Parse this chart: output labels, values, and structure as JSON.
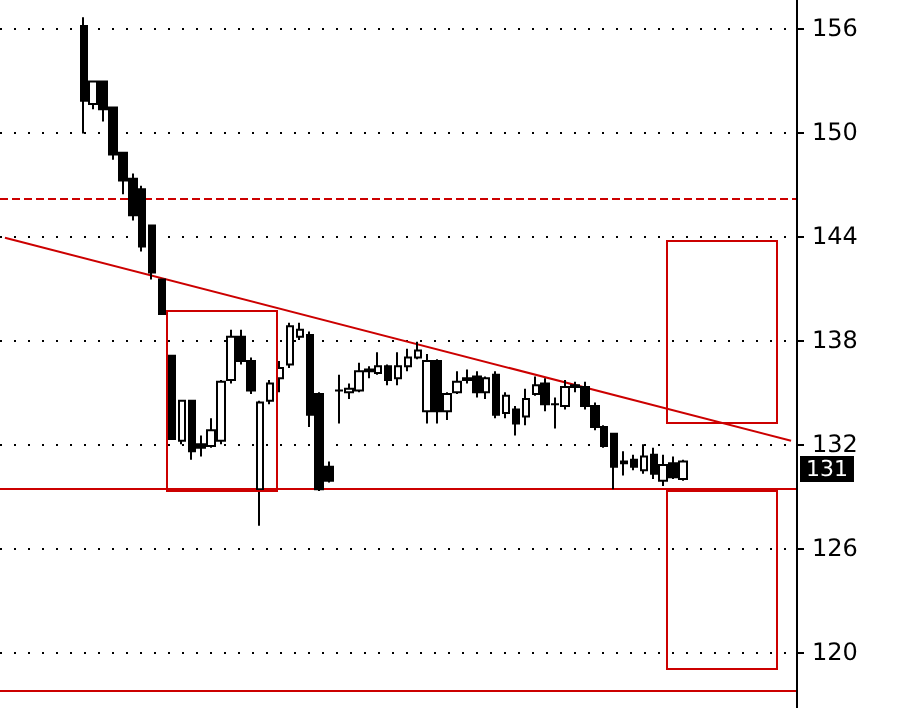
{
  "chart_data": {
    "type": "candlestick",
    "categories": [
      null,
      null,
      null,
      null,
      null,
      null,
      null,
      null,
      null,
      null,
      null,
      null,
      null,
      null,
      null,
      null,
      null,
      null,
      null,
      null,
      null,
      null,
      null,
      null,
      null,
      null,
      null,
      null,
      null,
      null,
      null,
      null,
      null,
      null,
      null,
      null,
      null,
      null,
      null,
      null,
      null,
      null,
      null,
      null,
      null,
      null,
      null,
      null,
      null,
      null,
      null,
      null,
      null,
      null,
      null,
      null,
      null,
      null,
      null,
      null,
      null,
      null,
      null,
      null,
      null,
      null,
      null,
      null,
      null,
      null,
      null,
      null,
      null,
      null,
      null,
      null,
      null,
      null,
      null,
      null,
      null
    ],
    "ohlc": [
      null,
      null,
      null,
      null,
      null,
      null,
      null,
      null,
      [
        156.1,
        156.6,
        149.9,
        151.8
      ],
      [
        151.6,
        152.9,
        151.3,
        152.9
      ],
      [
        152.9,
        152.9,
        150.6,
        151.3
      ],
      [
        151.4,
        151.4,
        148.4,
        148.7
      ],
      [
        148.8,
        148.8,
        146.4,
        147.2
      ],
      [
        147.3,
        147.6,
        144.9,
        145.2
      ],
      [
        146.7,
        146.9,
        143.1,
        143.4
      ],
      [
        144.6,
        144.6,
        141.5,
        141.9
      ],
      [
        141.5,
        141.5,
        139.5,
        139.5
      ],
      [
        137.1,
        137.1,
        132.3,
        132.3
      ],
      [
        132.2,
        134.5,
        132.0,
        134.5
      ],
      [
        134.5,
        134.5,
        131.1,
        131.6
      ],
      [
        132.0,
        132.5,
        131.3,
        131.8
      ],
      [
        131.9,
        133.5,
        131.8,
        132.8
      ],
      [
        132.2,
        135.7,
        132.0,
        135.6
      ],
      [
        135.7,
        138.6,
        135.5,
        138.2
      ],
      [
        138.2,
        138.6,
        136.6,
        136.8
      ],
      [
        136.8,
        137.0,
        134.9,
        135.1
      ],
      [
        129.4,
        134.5,
        127.3,
        134.4
      ],
      [
        134.5,
        135.7,
        134.3,
        135.5
      ],
      [
        135.8,
        136.8,
        135.0,
        136.4
      ],
      [
        136.6,
        139.0,
        136.4,
        138.8
      ],
      [
        138.2,
        139.0,
        138.0,
        138.6
      ],
      [
        138.3,
        138.5,
        133.0,
        133.7
      ],
      [
        134.9,
        135.0,
        129.3,
        129.4
      ],
      [
        130.7,
        131.0,
        129.8,
        129.9
      ],
      [
        135.1,
        136.0,
        133.2,
        135.1
      ],
      [
        135.0,
        135.5,
        134.6,
        135.2
      ],
      [
        135.1,
        136.7,
        135.0,
        136.2
      ],
      [
        136.2,
        136.5,
        135.8,
        136.3
      ],
      [
        136.1,
        137.3,
        136.0,
        136.5
      ],
      [
        136.5,
        136.6,
        135.4,
        135.7
      ],
      [
        135.8,
        137.3,
        135.4,
        136.5
      ],
      [
        136.5,
        137.5,
        136.2,
        137.0
      ],
      [
        137.0,
        137.9,
        136.9,
        137.4
      ],
      [
        133.9,
        137.2,
        133.2,
        136.8
      ],
      [
        136.8,
        136.9,
        133.2,
        133.9
      ],
      [
        133.9,
        135.0,
        133.4,
        134.9
      ],
      [
        135.0,
        136.2,
        134.9,
        135.6
      ],
      [
        135.7,
        136.3,
        135.5,
        135.8
      ],
      [
        135.9,
        136.2,
        134.7,
        135.0
      ],
      [
        135.0,
        135.9,
        134.6,
        135.8
      ],
      [
        136.0,
        136.2,
        133.5,
        133.7
      ],
      [
        133.8,
        135.0,
        133.5,
        134.8
      ],
      [
        134.0,
        134.2,
        132.5,
        133.2
      ],
      [
        133.6,
        135.2,
        133.1,
        134.6
      ],
      [
        134.9,
        135.9,
        134.8,
        135.4
      ],
      [
        135.5,
        135.8,
        133.9,
        134.3
      ],
      [
        134.3,
        134.7,
        132.9,
        134.3
      ],
      [
        134.2,
        135.7,
        134.0,
        135.3
      ],
      [
        135.4,
        135.6,
        135.0,
        135.3
      ],
      [
        135.3,
        135.6,
        134.0,
        134.2
      ],
      [
        134.2,
        134.4,
        132.8,
        133.0
      ],
      [
        133.0,
        133.1,
        131.8,
        131.9
      ],
      [
        132.6,
        132.6,
        129.4,
        130.7
      ],
      [
        131.0,
        131.6,
        130.2,
        130.9
      ],
      [
        131.1,
        131.4,
        130.5,
        130.7
      ],
      [
        130.5,
        132.0,
        130.3,
        131.3
      ],
      [
        131.4,
        131.8,
        130.0,
        130.3
      ],
      [
        129.9,
        131.4,
        129.6,
        130.8
      ],
      [
        130.9,
        131.3,
        130.0,
        130.1
      ],
      [
        130.0,
        131.1,
        129.9,
        131.0
      ],
      null,
      null,
      null,
      null,
      null,
      null,
      null,
      null,
      null,
      null,
      null
    ],
    "series": [
      {
        "type": "line",
        "color": "#cc0000",
        "values": [
          143.9,
          null,
          null,
          null,
          null,
          null,
          null,
          null,
          null,
          null,
          null,
          null,
          null,
          null,
          null,
          null,
          null,
          null,
          null,
          null,
          null,
          null,
          null,
          null,
          null,
          null,
          null,
          null,
          null,
          null,
          null,
          null,
          null,
          null,
          null,
          null,
          null,
          null,
          null,
          null,
          null,
          null,
          null,
          null,
          null,
          null,
          null,
          null,
          null,
          null,
          null,
          null,
          null,
          null,
          null,
          null,
          null,
          null,
          null,
          null,
          null,
          null,
          null,
          null,
          null,
          null,
          null,
          null,
          null,
          null,
          null,
          null,
          null,
          null,
          null,
          null,
          null,
          null,
          null,
          null,
          132.2
        ]
      }
    ],
    "ylim": [
      116.8,
      157.6
    ],
    "yticks": [
      120,
      126,
      132,
      138,
      144,
      150,
      156
    ],
    "grid": "y",
    "tick_labels": "y",
    "ref_lines": [
      {
        "axis": "y",
        "value": 146.2,
        "color": "#cc0000",
        "line_style": "dashed"
      },
      {
        "axis": "y",
        "value": 129.4,
        "color": "#cc0000"
      },
      {
        "axis": "y",
        "value": 117.8,
        "color": "#cc0000"
      }
    ],
    "annotations": [
      "131"
    ]
  }
}
